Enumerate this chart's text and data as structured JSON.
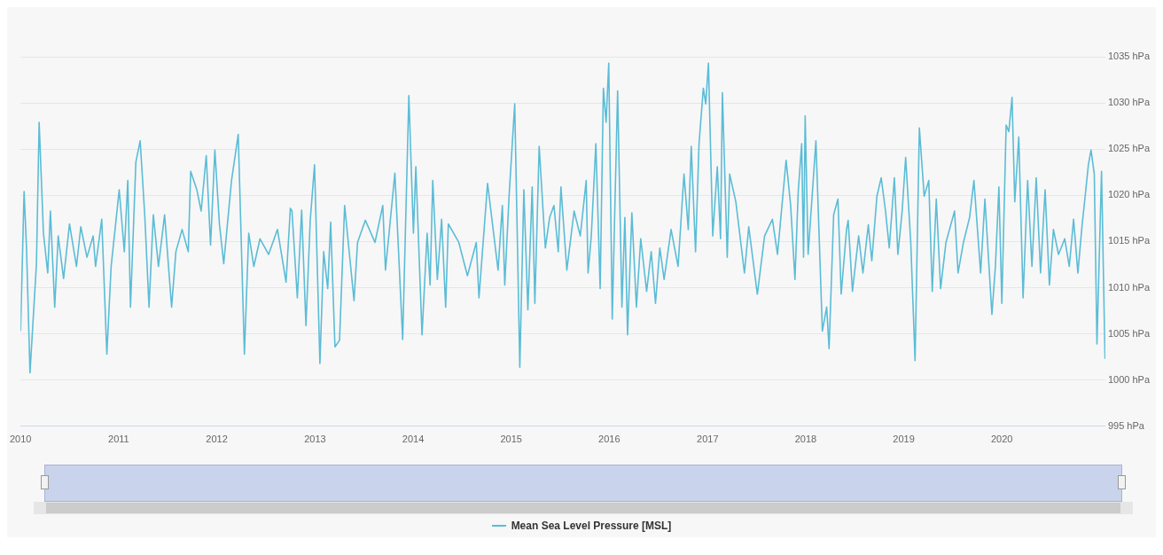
{
  "chart_data": {
    "type": "line",
    "x": [
      "2010-01-01",
      "2010-01-14",
      "2010-01-23",
      "2010-02-05",
      "2010-03-01",
      "2010-03-11",
      "2010-03-27",
      "2010-04-12",
      "2010-04-22",
      "2010-05-08",
      "2010-05-21",
      "2010-06-10",
      "2010-07-02",
      "2010-07-28",
      "2010-08-13",
      "2010-09-05",
      "2010-09-28",
      "2010-10-07",
      "2010-10-30",
      "2010-11-18",
      "2010-12-04",
      "2011-01-03",
      "2011-01-22",
      "2011-02-04",
      "2011-02-14",
      "2011-03-06",
      "2011-03-22",
      "2011-04-08",
      "2011-04-24",
      "2011-05-10",
      "2011-05-29",
      "2011-06-21",
      "2011-07-17",
      "2011-08-02",
      "2011-08-25",
      "2011-09-17",
      "2011-09-26",
      "2011-10-19",
      "2011-11-04",
      "2011-11-23",
      "2011-12-09",
      "2011-12-25",
      "2012-01-11",
      "2012-01-27",
      "2012-02-25",
      "2012-03-21",
      "2012-04-13",
      "2012-04-29",
      "2012-05-18",
      "2012-06-10",
      "2012-07-12",
      "2012-08-14",
      "2012-09-15",
      "2012-10-01",
      "2012-10-07",
      "2012-10-27",
      "2012-11-12",
      "2012-11-28",
      "2012-12-14",
      "2012-12-30",
      "2013-01-19",
      "2013-02-02",
      "2013-02-17",
      "2013-02-28",
      "2013-03-16",
      "2013-04-02",
      "2013-04-21",
      "2013-05-26",
      "2013-06-08",
      "2013-07-07",
      "2013-08-12",
      "2013-09-10",
      "2013-09-20",
      "2013-10-25",
      "2013-11-23",
      "2013-12-16",
      "2014-01-02",
      "2014-01-11",
      "2014-02-03",
      "2014-02-22",
      "2014-03-05",
      "2014-03-15",
      "2014-04-01",
      "2014-04-17",
      "2014-05-02",
      "2014-05-12",
      "2014-06-20",
      "2014-07-22",
      "2014-08-24",
      "2014-09-03",
      "2014-10-05",
      "2014-11-13",
      "2014-11-29",
      "2014-12-08",
      "2014-12-24",
      "2015-01-14",
      "2015-02-02",
      "2015-02-17",
      "2015-03-04",
      "2015-03-20",
      "2015-03-30",
      "2015-04-15",
      "2015-05-08",
      "2015-05-24",
      "2015-06-09",
      "2015-06-25",
      "2015-07-05",
      "2015-07-27",
      "2015-08-23",
      "2015-09-15",
      "2015-10-07",
      "2015-10-14",
      "2015-10-26",
      "2015-11-12",
      "2015-11-28",
      "2015-12-10",
      "2015-12-20",
      "2015-12-30",
      "2016-01-12",
      "2016-02-01",
      "2016-02-17",
      "2016-02-28",
      "2016-03-09",
      "2016-03-25",
      "2016-04-11",
      "2016-04-27",
      "2016-05-19",
      "2016-06-05",
      "2016-06-21",
      "2016-07-07",
      "2016-07-23",
      "2016-08-18",
      "2016-09-13",
      "2016-10-05",
      "2016-10-21",
      "2016-11-01",
      "2016-11-17",
      "2016-11-30",
      "2016-12-16",
      "2016-12-25",
      "2017-01-04",
      "2017-01-20",
      "2017-02-06",
      "2017-02-18",
      "2017-02-25",
      "2017-03-15",
      "2017-03-24",
      "2017-04-16",
      "2017-05-18",
      "2017-06-03",
      "2017-07-05",
      "2017-08-01",
      "2017-08-30",
      "2017-09-18",
      "2017-10-20",
      "2017-11-06",
      "2017-11-22",
      "2017-12-04",
      "2017-12-17",
      "2017-12-24",
      "2017-12-30",
      "2018-01-10",
      "2018-02-08",
      "2018-03-04",
      "2018-03-20",
      "2018-03-29",
      "2018-04-15",
      "2018-05-01",
      "2018-05-13",
      "2018-06-02",
      "2018-06-08",
      "2018-06-24",
      "2018-07-17",
      "2018-08-02",
      "2018-08-22",
      "2018-09-04",
      "2018-09-23",
      "2018-10-09",
      "2018-10-25",
      "2018-11-08",
      "2018-11-27",
      "2018-12-10",
      "2018-12-26",
      "2019-01-08",
      "2019-01-27",
      "2019-02-12",
      "2019-02-28",
      "2019-03-18",
      "2019-04-04",
      "2019-04-17",
      "2019-05-02",
      "2019-05-18",
      "2019-06-07",
      "2019-07-09",
      "2019-07-22",
      "2019-08-11",
      "2019-09-03",
      "2019-09-19",
      "2019-10-14",
      "2019-10-30",
      "2019-11-25",
      "2019-12-08",
      "2019-12-21",
      "2020-01-01",
      "2020-01-17",
      "2020-01-27",
      "2020-02-08",
      "2020-02-18",
      "2020-03-04",
      "2020-03-20",
      "2020-04-06",
      "2020-04-22",
      "2020-05-08",
      "2020-05-24",
      "2020-06-10",
      "2020-06-26",
      "2020-07-11",
      "2020-07-30",
      "2020-08-22",
      "2020-09-08",
      "2020-09-24",
      "2020-10-10",
      "2020-10-26",
      "2020-11-05",
      "2020-11-18",
      "2020-11-28",
      "2020-12-10",
      "2020-12-20",
      "2021-01-06",
      "2021-01-19"
    ],
    "series": [
      {
        "name": "Mean Sea Level Pressure [MSL]",
        "color": "#5bbcd6",
        "values": [
          1005.3,
          1020.4,
          1014.3,
          1000.8,
          1012.6,
          1027.9,
          1015.9,
          1011.6,
          1018.3,
          1007.9,
          1015.6,
          1011,
          1016.9,
          1012.3,
          1016.6,
          1013.3,
          1015.6,
          1012.3,
          1017.4,
          1002.8,
          1012.3,
          1020.6,
          1013.9,
          1021.6,
          1007.9,
          1023.6,
          1025.9,
          1017.9,
          1007.9,
          1017.9,
          1012.3,
          1017.9,
          1007.9,
          1013.9,
          1016.3,
          1013.9,
          1022.6,
          1020.6,
          1018.3,
          1024.3,
          1014.6,
          1024.9,
          1016.9,
          1012.6,
          1021.6,
          1026.6,
          1002.8,
          1015.9,
          1012.3,
          1015.3,
          1013.6,
          1016.3,
          1010.6,
          1018.6,
          1018.3,
          1008.9,
          1018.4,
          1005.9,
          1017.3,
          1023.3,
          1001.8,
          1013.9,
          1009.9,
          1017.1,
          1003.6,
          1004.3,
          1018.9,
          1008.6,
          1014.9,
          1017.3,
          1014.9,
          1018.9,
          1011.9,
          1022.4,
          1004.4,
          1030.8,
          1015.9,
          1023.1,
          1004.9,
          1015.9,
          1010.3,
          1021.6,
          1010.9,
          1017.4,
          1007.9,
          1016.9,
          1014.9,
          1011.3,
          1014.9,
          1008.9,
          1021.3,
          1011.9,
          1018.9,
          1010.3,
          1019.9,
          1029.9,
          1001.4,
          1020.6,
          1007.6,
          1020.9,
          1008.3,
          1025.3,
          1014.3,
          1017.6,
          1018.9,
          1013.9,
          1020.9,
          1011.9,
          1018.3,
          1015.6,
          1021.6,
          1011.6,
          1015.6,
          1025.6,
          1009.9,
          1031.6,
          1027.9,
          1034.3,
          1006.6,
          1031.3,
          1007.9,
          1017.6,
          1004.9,
          1018.1,
          1007.9,
          1015.3,
          1009.6,
          1013.9,
          1008.3,
          1014.3,
          1010.9,
          1016.3,
          1012.3,
          1022.3,
          1016.3,
          1025.3,
          1013.9,
          1025.6,
          1031.6,
          1029.9,
          1034.3,
          1015.6,
          1023.1,
          1015.3,
          1031.1,
          1013.3,
          1022.3,
          1019.3,
          1011.6,
          1016.6,
          1009.3,
          1015.6,
          1017.4,
          1013.6,
          1023.8,
          1018.9,
          1010.9,
          1020.3,
          1025.6,
          1013.3,
          1028.6,
          1013.6,
          1025.9,
          1005.3,
          1007.9,
          1003.4,
          1017.9,
          1019.6,
          1009.3,
          1016.3,
          1017.3,
          1009.6,
          1015.6,
          1011.6,
          1016.8,
          1012.9,
          1019.9,
          1021.9,
          1018.3,
          1014.3,
          1021.9,
          1013.6,
          1018.3,
          1024.1,
          1014.9,
          1002.1,
          1027.3,
          1019.9,
          1021.6,
          1009.6,
          1019.6,
          1009.9,
          1014.9,
          1018.3,
          1011.6,
          1014.9,
          1017.6,
          1021.6,
          1011.6,
          1019.6,
          1007.1,
          1012.3,
          1020.9,
          1008.3,
          1027.6,
          1026.9,
          1030.6,
          1019.3,
          1026.3,
          1008.9,
          1021.6,
          1012.3,
          1021.9,
          1011.6,
          1020.6,
          1010.3,
          1016.3,
          1013.6,
          1015.3,
          1012.3,
          1017.4,
          1011.6,
          1016.9,
          1019.6,
          1023.3,
          1024.9,
          1022.3,
          1003.9,
          1022.6,
          1002.3
        ]
      }
    ],
    "xlim": [
      "2010-01-01",
      "2021-01-20"
    ],
    "xticks": [
      {
        "value": "2010-01-01",
        "label": "2010"
      },
      {
        "value": "2011-01-01",
        "label": "2011"
      },
      {
        "value": "2012-01-01",
        "label": "2012"
      },
      {
        "value": "2013-01-01",
        "label": "2013"
      },
      {
        "value": "2014-01-01",
        "label": "2014"
      },
      {
        "value": "2015-01-01",
        "label": "2015"
      },
      {
        "value": "2016-01-01",
        "label": "2016"
      },
      {
        "value": "2017-01-01",
        "label": "2017"
      },
      {
        "value": "2018-01-01",
        "label": "2018"
      },
      {
        "value": "2019-01-01",
        "label": "2019"
      },
      {
        "value": "2020-01-01",
        "label": "2020"
      }
    ],
    "ylim": [
      995,
      1035
    ],
    "yticks": [
      {
        "value": 995,
        "label": "995 hPa"
      },
      {
        "value": 1000,
        "label": "1000 hPa"
      },
      {
        "value": 1005,
        "label": "1005 hPa"
      },
      {
        "value": 1010,
        "label": "1010 hPa"
      },
      {
        "value": 1015,
        "label": "1015 hPa"
      },
      {
        "value": 1020,
        "label": "1020 hPa"
      },
      {
        "value": 1025,
        "label": "1025 hPa"
      },
      {
        "value": 1030,
        "label": "1030 hPa"
      },
      {
        "value": 1035,
        "label": "1035 hPa"
      }
    ],
    "grid": "y",
    "legend": "bottom"
  }
}
